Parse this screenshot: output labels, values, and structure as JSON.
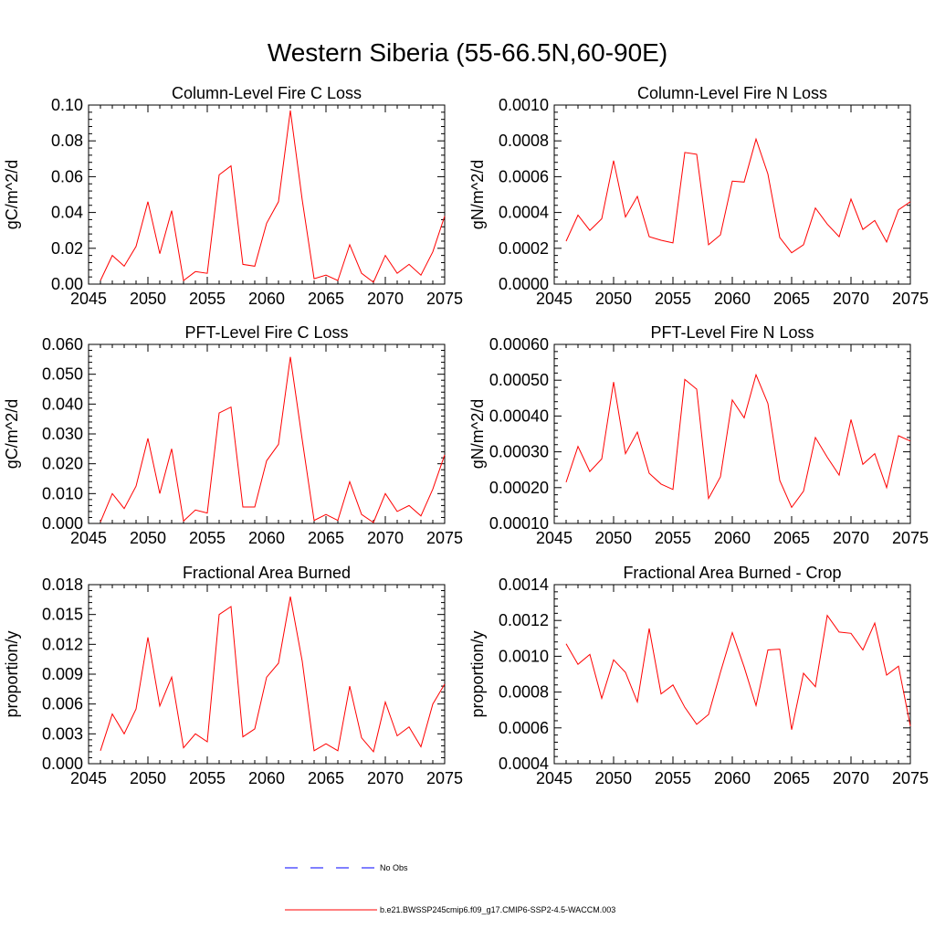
{
  "figure": {
    "title": "Western Siberia (55-66.5N,60-90E)"
  },
  "legend": {
    "entries": [
      {
        "label": "No Obs",
        "color": "#0000ff",
        "dash": "dashed"
      },
      {
        "label": "b.e21.BWSSP245cmip6.f09_g17.CMIP6-SSP2-4.5-WACCM.003",
        "color": "#ff0000",
        "dash": "solid"
      }
    ]
  },
  "series_color": "#ff0000",
  "chart_data": [
    {
      "type": "line",
      "title": "Column-Level Fire C Loss",
      "ylabel": "gC/m^2/d",
      "xlim": [
        2045,
        2075
      ],
      "ylim": [
        0,
        0.1
      ],
      "x_ticks": [
        "2045",
        "2050",
        "2055",
        "2060",
        "2065",
        "2070",
        "2075"
      ],
      "y_ticks": [
        "0.00",
        "0.02",
        "0.04",
        "0.06",
        "0.08",
        "0.10"
      ],
      "x": [
        2046,
        2047,
        2048,
        2049,
        2050,
        2051,
        2052,
        2053,
        2054,
        2055,
        2056,
        2057,
        2058,
        2059,
        2060,
        2061,
        2062,
        2063,
        2064,
        2065,
        2066,
        2067,
        2068,
        2069,
        2070,
        2071,
        2072,
        2073,
        2074,
        2075
      ],
      "series": [
        {
          "values": [
            0.002,
            0.016,
            0.01,
            0.021,
            0.046,
            0.017,
            0.041,
            0.002,
            0.007,
            0.006,
            0.061,
            0.066,
            0.011,
            0.01,
            0.034,
            0.046,
            0.097,
            0.047,
            0.003,
            0.005,
            0.002,
            0.022,
            0.006,
            0.001,
            0.016,
            0.006,
            0.011,
            0.005,
            0.018,
            0.038
          ]
        }
      ]
    },
    {
      "type": "line",
      "title": "Column-Level Fire N Loss",
      "ylabel": "gN/m^2/d",
      "xlim": [
        2045,
        2075
      ],
      "ylim": [
        0,
        0.001
      ],
      "x_ticks": [
        "2045",
        "2050",
        "2055",
        "2060",
        "2065",
        "2070",
        "2075"
      ],
      "y_ticks": [
        "0.0000",
        "0.0002",
        "0.0004",
        "0.0006",
        "0.0008",
        "0.0010"
      ],
      "x": [
        2046,
        2047,
        2048,
        2049,
        2050,
        2051,
        2052,
        2053,
        2054,
        2055,
        2056,
        2057,
        2058,
        2059,
        2060,
        2061,
        2062,
        2063,
        2064,
        2065,
        2066,
        2067,
        2068,
        2069,
        2070,
        2071,
        2072,
        2073,
        2074,
        2075
      ],
      "series": [
        {
          "values": [
            0.00024,
            0.000385,
            0.0003,
            0.000365,
            0.00069,
            0.000375,
            0.00049,
            0.000265,
            0.000245,
            0.00023,
            0.000735,
            0.000725,
            0.00022,
            0.000275,
            0.000575,
            0.00057,
            0.00081,
            0.000615,
            0.00026,
            0.000175,
            0.00022,
            0.000425,
            0.000335,
            0.000265,
            0.000475,
            0.000305,
            0.000355,
            0.000235,
            0.000415,
            0.00046
          ]
        }
      ]
    },
    {
      "type": "line",
      "title": "PFT-Level Fire C Loss",
      "ylabel": "gC/m^2/d",
      "xlim": [
        2045,
        2075
      ],
      "ylim": [
        0,
        0.06
      ],
      "x_ticks": [
        "2045",
        "2050",
        "2055",
        "2060",
        "2065",
        "2070",
        "2075"
      ],
      "y_ticks": [
        "0.000",
        "0.010",
        "0.020",
        "0.030",
        "0.040",
        "0.050",
        "0.060"
      ],
      "x": [
        2046,
        2047,
        2048,
        2049,
        2050,
        2051,
        2052,
        2053,
        2054,
        2055,
        2056,
        2057,
        2058,
        2059,
        2060,
        2061,
        2062,
        2063,
        2064,
        2065,
        2066,
        2067,
        2068,
        2069,
        2070,
        2071,
        2072,
        2073,
        2074,
        2075
      ],
      "series": [
        {
          "values": [
            0.0005,
            0.01,
            0.005,
            0.0125,
            0.0285,
            0.01,
            0.025,
            0.0008,
            0.0045,
            0.0035,
            0.037,
            0.039,
            0.0055,
            0.0055,
            0.021,
            0.0265,
            0.0558,
            0.028,
            0.001,
            0.003,
            0.001,
            0.014,
            0.003,
            0.0003,
            0.01,
            0.004,
            0.006,
            0.0025,
            0.0115,
            0.023
          ]
        }
      ]
    },
    {
      "type": "line",
      "title": "PFT-Level Fire N Loss",
      "ylabel": "gN/m^2/d",
      "xlim": [
        2045,
        2075
      ],
      "ylim": [
        0.0001,
        0.0006
      ],
      "x_ticks": [
        "2045",
        "2050",
        "2055",
        "2060",
        "2065",
        "2070",
        "2075"
      ],
      "y_ticks": [
        "0.00010",
        "0.00020",
        "0.00030",
        "0.00040",
        "0.00050",
        "0.00060"
      ],
      "x": [
        2046,
        2047,
        2048,
        2049,
        2050,
        2051,
        2052,
        2053,
        2054,
        2055,
        2056,
        2057,
        2058,
        2059,
        2060,
        2061,
        2062,
        2063,
        2064,
        2065,
        2066,
        2067,
        2068,
        2069,
        2070,
        2071,
        2072,
        2073,
        2074,
        2075
      ],
      "series": [
        {
          "values": [
            0.000215,
            0.000315,
            0.000245,
            0.00028,
            0.000495,
            0.000295,
            0.000355,
            0.00024,
            0.00021,
            0.000195,
            0.000502,
            0.000475,
            0.00017,
            0.00023,
            0.000445,
            0.000395,
            0.000515,
            0.000435,
            0.00022,
            0.000145,
            0.00019,
            0.00034,
            0.000285,
            0.000235,
            0.00039,
            0.000265,
            0.000295,
            0.0002,
            0.000345,
            0.00033
          ]
        }
      ]
    },
    {
      "type": "line",
      "title": "Fractional Area Burned",
      "ylabel": "proportion/y",
      "xlim": [
        2045,
        2075
      ],
      "ylim": [
        0,
        0.018
      ],
      "x_ticks": [
        "2045",
        "2050",
        "2055",
        "2060",
        "2065",
        "2070",
        "2075"
      ],
      "y_ticks": [
        "0.000",
        "0.003",
        "0.006",
        "0.009",
        "0.012",
        "0.015",
        "0.018"
      ],
      "x": [
        2046,
        2047,
        2048,
        2049,
        2050,
        2051,
        2052,
        2053,
        2054,
        2055,
        2056,
        2057,
        2058,
        2059,
        2060,
        2061,
        2062,
        2063,
        2064,
        2065,
        2066,
        2067,
        2068,
        2069,
        2070,
        2071,
        2072,
        2073,
        2074,
        2075
      ],
      "series": [
        {
          "values": [
            0.0013,
            0.005,
            0.003,
            0.0055,
            0.0127,
            0.0058,
            0.0087,
            0.0016,
            0.003,
            0.0022,
            0.015,
            0.0158,
            0.0027,
            0.0035,
            0.0087,
            0.0101,
            0.0168,
            0.0103,
            0.0013,
            0.002,
            0.0013,
            0.0078,
            0.0026,
            0.0012,
            0.0062,
            0.0028,
            0.0037,
            0.0017,
            0.006,
            0.008
          ]
        }
      ]
    },
    {
      "type": "line",
      "title": "Fractional Area Burned - Crop",
      "ylabel": "proportion/y",
      "xlim": [
        2045,
        2075
      ],
      "ylim": [
        0.0004,
        0.0014
      ],
      "x_ticks": [
        "2045",
        "2050",
        "2055",
        "2060",
        "2065",
        "2070",
        "2075"
      ],
      "y_ticks": [
        "0.0004",
        "0.0006",
        "0.0008",
        "0.0010",
        "0.0012",
        "0.0014"
      ],
      "x": [
        2046,
        2047,
        2048,
        2049,
        2050,
        2051,
        2052,
        2053,
        2054,
        2055,
        2056,
        2057,
        2058,
        2059,
        2060,
        2061,
        2062,
        2063,
        2064,
        2065,
        2066,
        2067,
        2068,
        2069,
        2070,
        2071,
        2072,
        2073,
        2074,
        2075
      ],
      "series": [
        {
          "values": [
            0.00107,
            0.000955,
            0.00101,
            0.000765,
            0.00098,
            0.00091,
            0.000745,
            0.001155,
            0.00079,
            0.00084,
            0.000715,
            0.00062,
            0.000675,
            0.00091,
            0.001132,
            0.00094,
            0.000725,
            0.001035,
            0.00104,
            0.00059,
            0.000905,
            0.00083,
            0.001228,
            0.001135,
            0.001128,
            0.001035,
            0.001185,
            0.000895,
            0.000945,
            0.00061
          ]
        }
      ]
    }
  ]
}
